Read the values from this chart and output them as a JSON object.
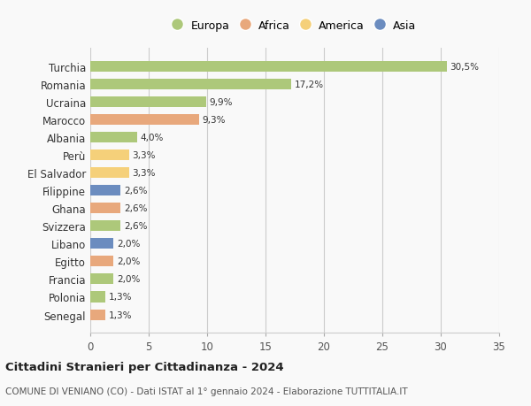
{
  "categories": [
    "Senegal",
    "Polonia",
    "Francia",
    "Egitto",
    "Libano",
    "Svizzera",
    "Ghana",
    "Filippine",
    "El Salvador",
    "Perù",
    "Albania",
    "Marocco",
    "Ucraina",
    "Romania",
    "Turchia"
  ],
  "values": [
    1.3,
    1.3,
    2.0,
    2.0,
    2.0,
    2.6,
    2.6,
    2.6,
    3.3,
    3.3,
    4.0,
    9.3,
    9.9,
    17.2,
    30.5
  ],
  "labels": [
    "1,3%",
    "1,3%",
    "2,0%",
    "2,0%",
    "2,0%",
    "2,6%",
    "2,6%",
    "2,6%",
    "3,3%",
    "3,3%",
    "4,0%",
    "9,3%",
    "9,9%",
    "17,2%",
    "30,5%"
  ],
  "colors": [
    "#e8a87c",
    "#adc87a",
    "#adc87a",
    "#e8a87c",
    "#6b8cbf",
    "#adc87a",
    "#e8a87c",
    "#6b8cbf",
    "#f5d07a",
    "#f5d07a",
    "#adc87a",
    "#e8a87c",
    "#adc87a",
    "#adc87a",
    "#adc87a"
  ],
  "legend_labels": [
    "Europa",
    "Africa",
    "America",
    "Asia"
  ],
  "legend_colors": [
    "#adc87a",
    "#e8a87c",
    "#f5d07a",
    "#6b8cbf"
  ],
  "title": "Cittadini Stranieri per Cittadinanza - 2024",
  "subtitle": "COMUNE DI VENIANO (CO) - Dati ISTAT al 1° gennaio 2024 - Elaborazione TUTTITALIA.IT",
  "xlim": [
    0,
    35
  ],
  "xticks": [
    0,
    5,
    10,
    15,
    20,
    25,
    30,
    35
  ],
  "background_color": "#f9f9f9",
  "grid_color": "#cccccc",
  "bar_height": 0.6
}
